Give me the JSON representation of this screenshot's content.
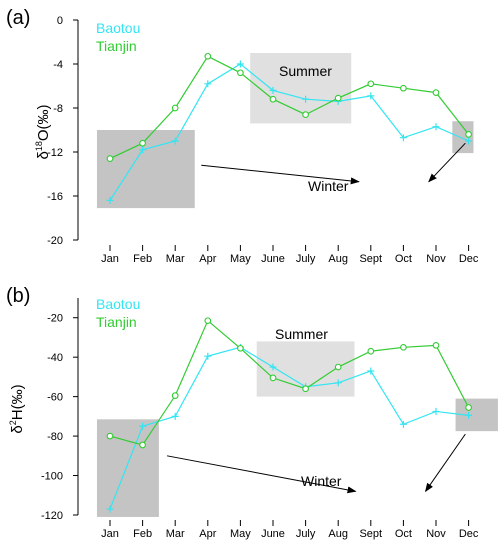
{
  "colors": {
    "baotou": "#33e5f2",
    "tianjin": "#33cc33",
    "summer_box": "#e0e0e0",
    "winter_box": "#c4c4c4"
  },
  "chart_data": [
    {
      "type": "line",
      "panel_label": "(a)",
      "ylabel_main": "δ",
      "ylabel_sup": "18",
      "ylabel_rest": "O(‰)",
      "categories": [
        "Jan",
        "Feb",
        "Mar",
        "Apr",
        "May",
        "June",
        "July",
        "Aug",
        "Sept",
        "Oct",
        "Nov",
        "Dec"
      ],
      "ylim": [
        -20,
        0
      ],
      "yticks": [
        0,
        -4,
        -8,
        -12,
        -16,
        -20
      ],
      "ytick_labels": [
        "0",
        "-4",
        "-8",
        "-12",
        "-16",
        "-20"
      ],
      "series": [
        {
          "name": "Baotou",
          "marker": "plus",
          "values": [
            -16.4,
            -11.8,
            -11.0,
            -5.8,
            -4.0,
            -6.4,
            -7.2,
            -7.4,
            -6.9,
            -10.7,
            -9.7,
            -11.0
          ]
        },
        {
          "name": "Tianjin",
          "marker": "circle",
          "values": [
            -12.6,
            -11.2,
            -8.0,
            -3.3,
            -4.8,
            -7.2,
            -8.6,
            -7.1,
            -5.8,
            -6.2,
            -6.6,
            -10.4
          ]
        }
      ],
      "annotations": {
        "summer": "Summer",
        "winter": "Winter"
      },
      "regions": {
        "summer": {
          "x": [
            5.3,
            8.4
          ],
          "y": [
            -3.0,
            -9.4
          ]
        },
        "winter_left": {
          "x": [
            0.6,
            3.6
          ],
          "y": [
            -10.0,
            -17.1
          ]
        },
        "winter_right": {
          "x": [
            11.5,
            12.15
          ],
          "y": [
            -9.2,
            -12.1
          ]
        }
      },
      "arrows": {
        "origin": [
          9.0,
          -14.7
        ],
        "left_target": [
          3.8,
          -13.2
        ],
        "right_target": [
          11.9,
          -11.2
        ]
      }
    },
    {
      "type": "line",
      "panel_label": "(b)",
      "ylabel_main": "δ",
      "ylabel_sup": "2",
      "ylabel_rest": "H(‰)",
      "categories": [
        "Jan",
        "Feb",
        "Mar",
        "Apr",
        "May",
        "June",
        "July",
        "Aug",
        "Sept",
        "Oct",
        "Nov",
        "Dec"
      ],
      "ylim": [
        -120,
        -10
      ],
      "yticks": [
        -20,
        -40,
        -60,
        -80,
        -100,
        -120
      ],
      "ytick_labels": [
        "-20",
        "-40",
        "-60",
        "-80",
        "-100",
        "-120"
      ],
      "series": [
        {
          "name": "Baotou",
          "marker": "plus",
          "values": [
            -117,
            -75,
            -70,
            -39.5,
            -35,
            -45,
            -55,
            -53,
            -47,
            -74,
            -67.5,
            -69.5
          ]
        },
        {
          "name": "Tianjin",
          "marker": "circle",
          "values": [
            -80,
            -84.5,
            -59.5,
            -21.5,
            -35.5,
            -50.5,
            -56,
            -45,
            -37,
            -35,
            -34,
            -65.5
          ]
        }
      ],
      "annotations": {
        "summer": "Summer",
        "winter": "Winter"
      },
      "regions": {
        "summer": {
          "x": [
            5.5,
            8.5
          ],
          "y": [
            -32,
            -60
          ]
        },
        "winter_left": {
          "x": [
            0.6,
            2.5
          ],
          "y": [
            -71.5,
            -121
          ]
        },
        "winter_right": {
          "x": [
            11.6,
            12.9
          ],
          "y": [
            -61,
            -77.5
          ]
        }
      },
      "arrows": {
        "origin": [
          8.9,
          -108
        ],
        "left_target": [
          2.75,
          -90
        ],
        "right_target": [
          11.9,
          -79
        ]
      }
    }
  ]
}
